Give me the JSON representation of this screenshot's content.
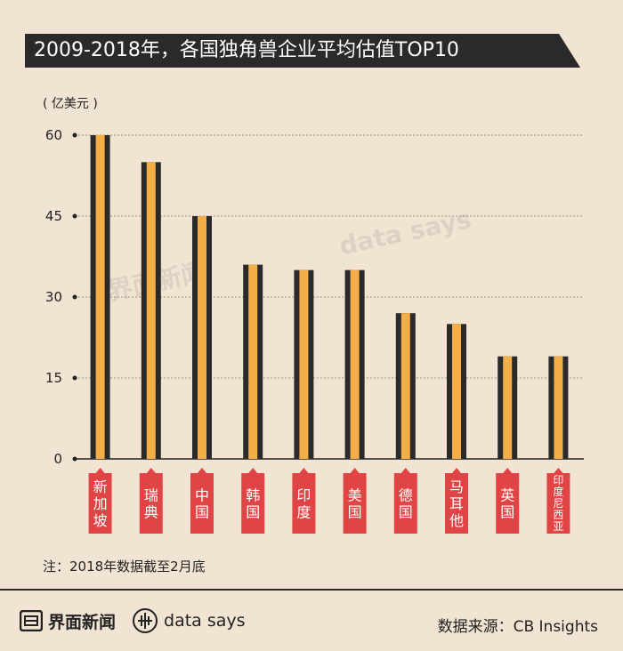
{
  "title": "2009-2018年，各国独角兽企业平均估值TOP10",
  "unit_label": "( 亿美元 )",
  "note": "注：2018年数据截至2月底",
  "footer": {
    "brand1": "界面新闻",
    "brand2": "data says",
    "source": "数据来源：CB Insights"
  },
  "watermark": {
    "brand1": "界面新闻",
    "brand2": "data says"
  },
  "colors": {
    "background": "#f2e4d3",
    "bar_dark": "#2a2a2a",
    "bar_orange": "#f4ae47",
    "label_red": "#e04444",
    "title_bg": "#2a2a2a"
  },
  "chart_data": {
    "type": "bar",
    "categories": [
      "新加坡",
      "瑞典",
      "中国",
      "韩国",
      "印度",
      "美国",
      "德国",
      "马耳他",
      "英国",
      "印度尼西亚"
    ],
    "values": [
      60,
      55,
      45,
      36,
      35,
      35,
      27,
      25,
      19,
      19
    ],
    "yticks": [
      0,
      15,
      30,
      45,
      60
    ],
    "ylim": [
      0,
      60
    ],
    "ylabel": "( 亿美元 )",
    "grid": true
  }
}
